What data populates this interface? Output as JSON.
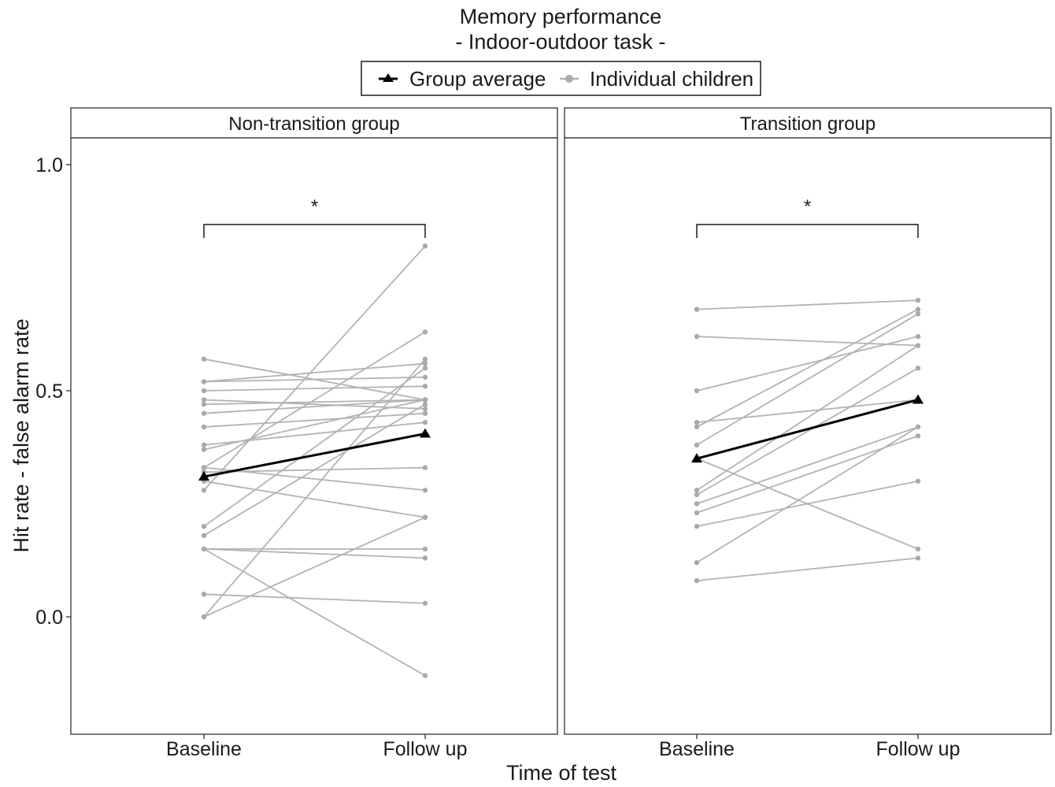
{
  "chart_data": {
    "type": "line",
    "title": "Memory performance",
    "subtitle": "- Indoor-outdoor task -",
    "xlabel": "Time of test",
    "ylabel": "Hit rate - false alarm rate",
    "categories": [
      "Baseline",
      "Follow up"
    ],
    "ylim": [
      -0.26,
      1.06
    ],
    "yticks": [
      0.0,
      0.5,
      1.0
    ],
    "ytick_labels": [
      "0.0",
      "0.5",
      "1.0"
    ],
    "grid": false,
    "legend": {
      "placement": "top",
      "entries": [
        {
          "label": "Group average",
          "color": "#000000",
          "marker": "triangle"
        },
        {
          "label": "Individual children",
          "color": "#aaaaaa",
          "marker": "circle"
        }
      ]
    },
    "colors": {
      "average": "#000000",
      "individual": "#b3b3b3"
    },
    "panels": [
      {
        "name": "Non-transition group",
        "significance": "*",
        "group_average": [
          0.31,
          0.405
        ],
        "individuals": [
          [
            0.57,
            0.48
          ],
          [
            0.52,
            0.56
          ],
          [
            0.52,
            0.53
          ],
          [
            0.5,
            0.51
          ],
          [
            0.48,
            0.46
          ],
          [
            0.47,
            0.48
          ],
          [
            0.45,
            0.48
          ],
          [
            0.42,
            0.45
          ],
          [
            0.38,
            0.43
          ],
          [
            0.37,
            0.48
          ],
          [
            0.33,
            0.63
          ],
          [
            0.33,
            0.28
          ],
          [
            0.32,
            0.33
          ],
          [
            0.3,
            0.22
          ],
          [
            0.28,
            0.82
          ],
          [
            0.2,
            0.55
          ],
          [
            0.18,
            0.47
          ],
          [
            0.15,
            0.15
          ],
          [
            0.15,
            0.13
          ],
          [
            0.15,
            -0.13
          ],
          [
            0.05,
            0.03
          ],
          [
            0.0,
            0.57
          ],
          [
            0.0,
            0.22
          ]
        ]
      },
      {
        "name": "Transition group",
        "significance": "*",
        "group_average": [
          0.35,
          0.48
        ],
        "individuals": [
          [
            0.68,
            0.7
          ],
          [
            0.62,
            0.6
          ],
          [
            0.5,
            0.62
          ],
          [
            0.43,
            0.48
          ],
          [
            0.42,
            0.68
          ],
          [
            0.38,
            0.67
          ],
          [
            0.35,
            0.15
          ],
          [
            0.28,
            0.6
          ],
          [
            0.27,
            0.55
          ],
          [
            0.25,
            0.42
          ],
          [
            0.23,
            0.4
          ],
          [
            0.2,
            0.3
          ],
          [
            0.12,
            0.42
          ],
          [
            0.08,
            0.13
          ]
        ]
      }
    ]
  }
}
